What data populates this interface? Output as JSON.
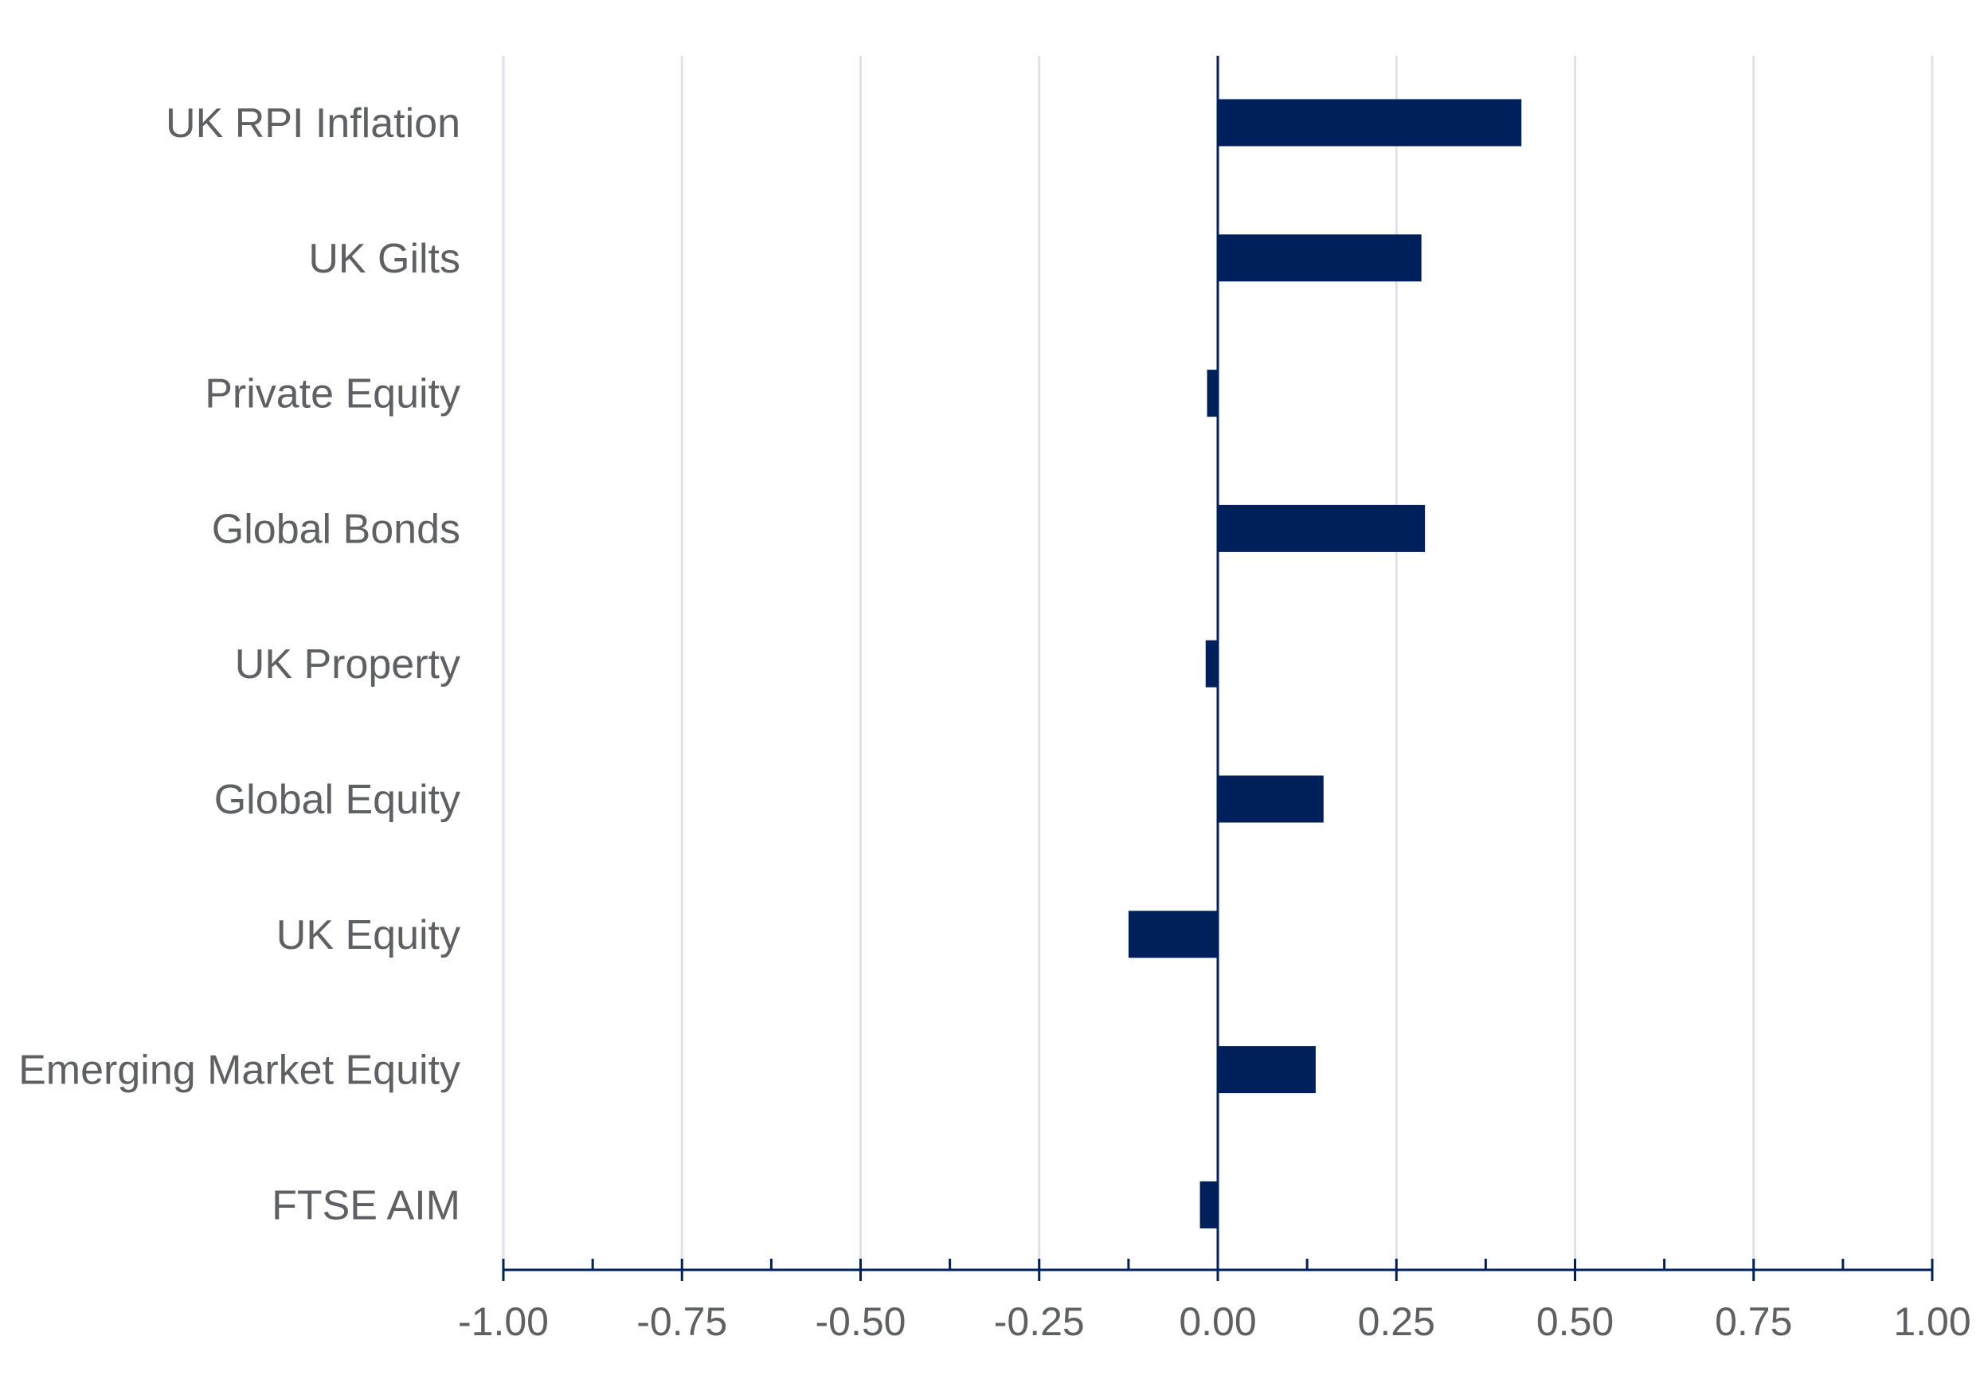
{
  "chart_data": {
    "type": "bar",
    "orientation": "horizontal",
    "title": "",
    "xlabel": "",
    "ylabel": "",
    "categories": [
      "UK RPI Inflation",
      "UK Gilts",
      "Private Equity",
      "Global Bonds",
      "UK Property",
      "Global Equity",
      "UK Equity",
      "Emerging Market Equity",
      "FTSE AIM"
    ],
    "values": [
      0.425,
      0.285,
      -0.015,
      0.29,
      -0.017,
      0.148,
      -0.125,
      0.137,
      -0.025
    ],
    "xlim": [
      -1.0,
      1.0
    ],
    "ticks": [
      -1.0,
      -0.75,
      -0.5,
      -0.25,
      0.0,
      0.25,
      0.5,
      0.75,
      1.0
    ],
    "tick_labels": [
      "-1.00",
      "-0.75",
      "-0.50",
      "-0.25",
      "0.00",
      "0.25",
      "0.50",
      "0.75",
      "1.00"
    ],
    "grid": true,
    "legend": "none",
    "colors": {
      "bar": "#00205b",
      "grid": "#dfe1ec",
      "axis": "#00205b",
      "text": "#5f6063"
    }
  }
}
